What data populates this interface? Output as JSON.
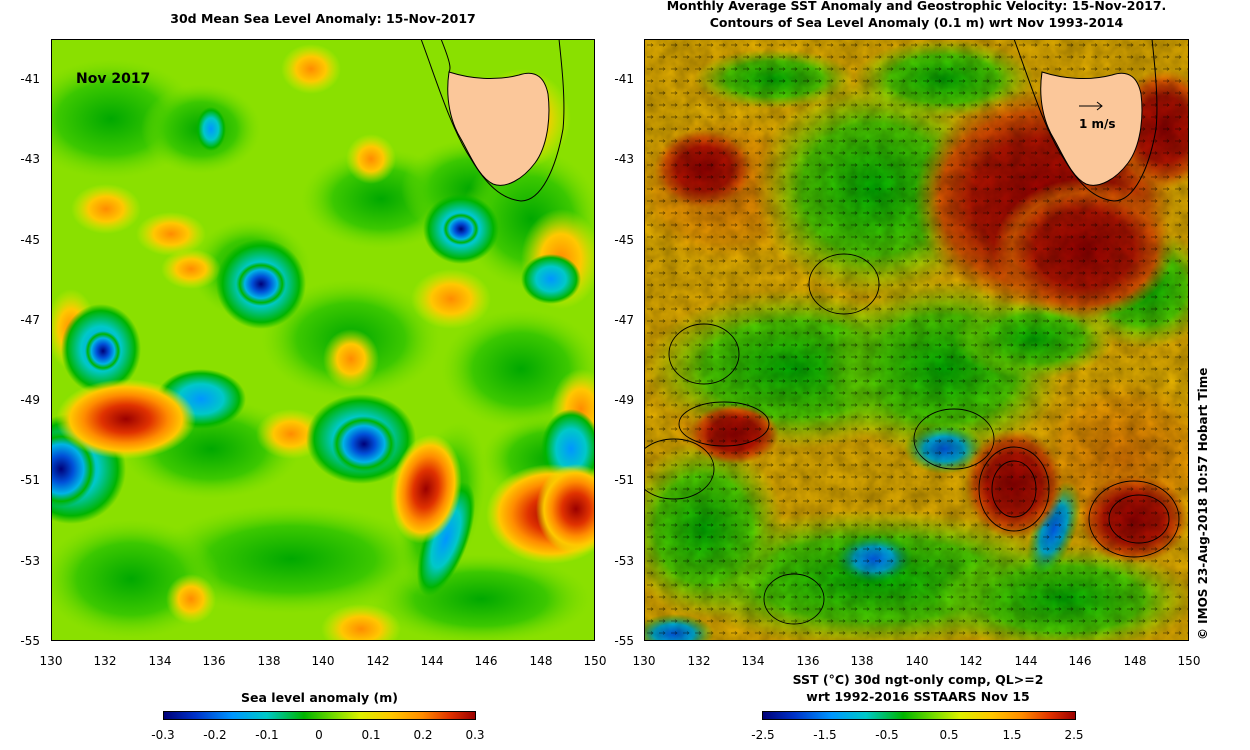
{
  "left_panel": {
    "title": "30d Mean Sea Level Anomaly: 15-Nov-2017",
    "month_label": "Nov 2017",
    "y_ticks": [
      "-41",
      "-43",
      "-45",
      "-47",
      "-49",
      "-51",
      "-53",
      "-55"
    ],
    "x_ticks": [
      "130",
      "132",
      "134",
      "136",
      "138",
      "140",
      "142",
      "144",
      "146",
      "148",
      "150"
    ],
    "colorbar_title": "Sea level anomaly (m)",
    "colorbar_ticks": [
      "-0.3",
      "-0.2",
      "-0.1",
      "0",
      "0.1",
      "0.2",
      "0.3"
    ]
  },
  "right_panel": {
    "title_line1": "Monthly Average SST Anomaly  and Geostrophic Velocity: 15-Nov-2017.",
    "title_line2": "Contours of Sea Level Anomaly (0.1 m) wrt Nov 1993-2014",
    "y_ticks": [
      "-41",
      "-43",
      "-45",
      "-47",
      "-49",
      "-51",
      "-53",
      "-55"
    ],
    "x_ticks": [
      "130",
      "132",
      "134",
      "136",
      "138",
      "140",
      "142",
      "144",
      "146",
      "148",
      "150"
    ],
    "velocity_scale_label": "1 m/s",
    "colorbar_title_line1": "SST (°C) 30d ngt-only comp, QL>=2",
    "colorbar_title_line2": "wrt 1992-2016 SSTAARS Nov 15",
    "colorbar_ticks": [
      "-2.5",
      "-1.5",
      "-0.5",
      "0.5",
      "1.5",
      "2.5"
    ],
    "credit": "© IMOS 23-Aug-2018 10:57 Hobart Time"
  },
  "colors": {
    "land": "#fbc79a",
    "scale": [
      "#000078",
      "#0032c8",
      "#0096ff",
      "#00c8c8",
      "#00b400",
      "#78dc00",
      "#dcf000",
      "#ffc800",
      "#ff8c00",
      "#e03200",
      "#9b0000"
    ]
  }
}
